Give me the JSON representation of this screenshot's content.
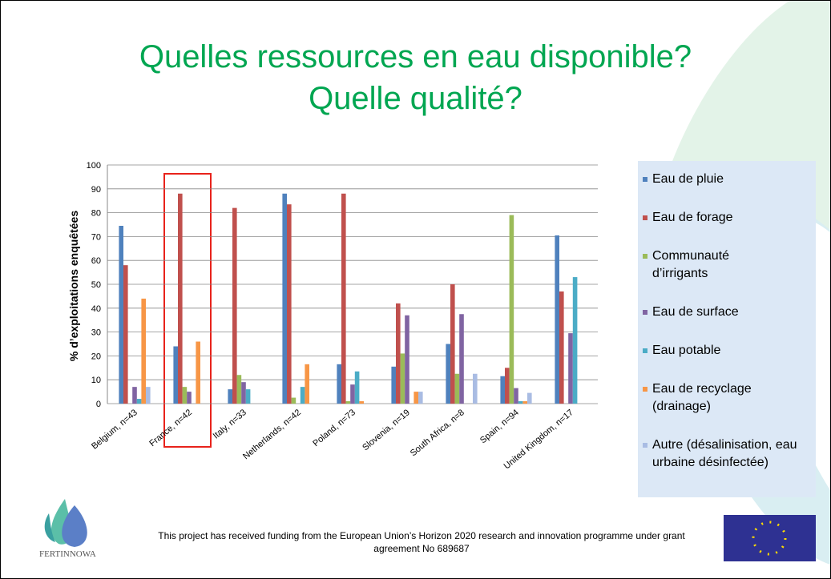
{
  "chart_data": {
    "type": "bar",
    "title": "Quelles ressources en eau disponible?",
    "subtitle": "Quelle qualité?",
    "y_label": "% d’exploitations enquêtées",
    "categories": [
      "Belgium, n=43",
      "France, n=42",
      "Italy, n=33",
      "Netherlands, n=42",
      "Poland, n=73",
      "Slovenia, n=19",
      "South Africa, n=8",
      "Spain, n=94",
      "United Kingdom, n=17"
    ],
    "series": [
      {
        "name": "Eau de pluie",
        "color": "#4f81bd",
        "values": [
          74.5,
          24,
          6,
          88,
          16.5,
          15.5,
          25,
          11.5,
          70.5
        ]
      },
      {
        "name": "Eau de forage",
        "color": "#c0504d",
        "values": [
          58,
          88,
          82,
          83.5,
          88,
          42,
          50,
          15,
          47
        ]
      },
      {
        "name": "Communauté d’irrigants",
        "color": "#9bbb59",
        "values": [
          0,
          7,
          12,
          2.5,
          1,
          21,
          12.5,
          79,
          0
        ]
      },
      {
        "name": "Eau de surface",
        "color": "#8064a2",
        "values": [
          7,
          5,
          9,
          0,
          8,
          37,
          37.5,
          6.5,
          29.5
        ]
      },
      {
        "name": "Eau potable",
        "color": "#4bacc6",
        "values": [
          2,
          0,
          6,
          7,
          13.5,
          0,
          0,
          1,
          53
        ]
      },
      {
        "name": "Eau de recyclage (drainage)",
        "color": "#f79646",
        "values": [
          44,
          26,
          0,
          16.5,
          1,
          5,
          0,
          1,
          0
        ]
      },
      {
        "name": "Autre (désalinisation, eau urbaine désinfectée)",
        "color": "#a9bce3",
        "values": [
          7,
          0,
          0,
          0,
          0,
          5,
          12.5,
          4.5,
          0
        ]
      }
    ],
    "ylim": [
      0,
      100
    ],
    "yticks": [
      0,
      10,
      20,
      30,
      40,
      50,
      60,
      70,
      80,
      90,
      100
    ],
    "grid": true
  },
  "footer": "This project has received funding from the European Union’s Horizon 2020 research and innovation programme under grant agreement No 689687",
  "logo_text": "FERTINNOWA"
}
